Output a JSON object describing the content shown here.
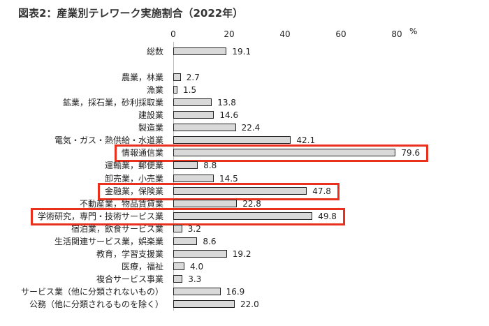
{
  "chart_data": {
    "type": "bar",
    "orientation": "horizontal",
    "title": "図表2：産業別テレワーク実施割合（2022年）",
    "xlabel": "%",
    "xlim": [
      0,
      80
    ],
    "ticks": [
      "0",
      "20",
      "40",
      "60",
      "80"
    ],
    "categories": [
      "総数",
      "",
      "農業，林業",
      "漁業",
      "鉱業，採石業，砂利採取業",
      "建設業",
      "製造業",
      "電気・ガス・熱供給・水道業",
      "情報通信業",
      "運輸業，郵便業",
      "卸売業，小売業",
      "金融業，保険業",
      "不動産業，物品賃貸業",
      "学術研究，専門・技術サービス業",
      "宿泊業，飲食サービス業",
      "生活関連サービス業，娯楽業",
      "教育，学習支援業",
      "医療，福祉",
      "複合サービス事業",
      "サービス業（他に分類されないもの）",
      "公務（他に分類されるものを除く）"
    ],
    "values": [
      19.1,
      null,
      2.7,
      1.5,
      13.8,
      14.6,
      22.4,
      42.1,
      79.6,
      8.8,
      14.5,
      47.8,
      22.8,
      49.8,
      3.2,
      8.6,
      19.2,
      4.0,
      3.3,
      16.9,
      22.0
    ],
    "value_labels": [
      "19.1",
      "",
      "2.7",
      "1.5",
      "13.8",
      "14.6",
      "22.4",
      "42.1",
      "79.6",
      "8.8",
      "14.5",
      "47.8",
      "22.8",
      "49.8",
      "3.2",
      "8.6",
      "19.2",
      "4.0",
      "3.3",
      "16.9",
      "22.0"
    ],
    "highlighted": [
      "情報通信業",
      "金融業，保険業",
      "学術研究，専門・技術サービス業"
    ],
    "colors": {
      "bar": "#d9d9d9",
      "highlight": "#e8301c"
    }
  }
}
